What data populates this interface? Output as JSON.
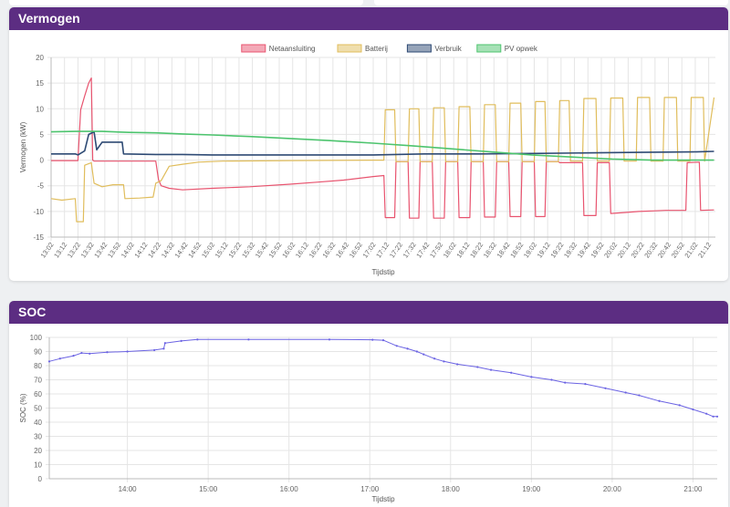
{
  "cards": {
    "vermogen": {
      "title": "Vermogen"
    },
    "soc": {
      "title": "SOC"
    }
  },
  "colors": {
    "header": "#5c2d82",
    "net": "#e8546f",
    "batt": "#e0bd5c",
    "verbruik": "#2e4a74",
    "pv": "#4dc46e",
    "soc": "#6b63e3"
  },
  "chart_data": [
    {
      "type": "line",
      "ylabel": "Vermogen (kW)",
      "xlabel": "Tijdstip",
      "ylim": [
        -15,
        20
      ],
      "yticks": [
        -15,
        -10,
        -5,
        0,
        5,
        10,
        15,
        20
      ],
      "xticks": [
        "13:02",
        "13:12",
        "13:22",
        "13:32",
        "13:42",
        "13:52",
        "14:02",
        "14:12",
        "14:22",
        "14:32",
        "14:42",
        "14:52",
        "15:02",
        "15:12",
        "15:22",
        "15:32",
        "15:42",
        "15:52",
        "16:02",
        "16:12",
        "16:22",
        "16:32",
        "16:42",
        "16:52",
        "17:02",
        "17:12",
        "17:22",
        "17:32",
        "17:42",
        "17:52",
        "18:02",
        "18:12",
        "18:22",
        "18:32",
        "18:42",
        "18:52",
        "19:02",
        "19:12",
        "19:22",
        "19:32",
        "19:42",
        "19:52",
        "20:02",
        "20:12",
        "20:22",
        "20:32",
        "20:42",
        "20:52",
        "21:02",
        "21:12"
      ],
      "xrange": [
        "13:02",
        "21:17"
      ],
      "legend": "top",
      "grid": true,
      "series": [
        {
          "name": "Netaansluiting",
          "color": "#e8546f",
          "points": [
            [
              "13:02",
              -0.1
            ],
            [
              "13:10",
              -0.1
            ],
            [
              "13:22",
              -0.1
            ],
            [
              "13:24",
              9.8
            ],
            [
              "13:27",
              12.5
            ],
            [
              "13:30",
              15.0
            ],
            [
              "13:32",
              16.0
            ],
            [
              "13:33",
              0.0
            ],
            [
              "13:34",
              -0.2
            ],
            [
              "13:50",
              -0.2
            ],
            [
              "14:08",
              -0.2
            ],
            [
              "14:20",
              -0.2
            ],
            [
              "14:22",
              -3.8
            ],
            [
              "14:24",
              -5.0
            ],
            [
              "14:30",
              -5.5
            ],
            [
              "14:40",
              -5.8
            ],
            [
              "15:02",
              -5.5
            ],
            [
              "15:30",
              -5.2
            ],
            [
              "16:00",
              -4.7
            ],
            [
              "16:20",
              -4.3
            ],
            [
              "16:40",
              -3.9
            ],
            [
              "17:02",
              -3.2
            ],
            [
              "17:10",
              -3.0
            ],
            [
              "17:11",
              -11.2
            ],
            [
              "17:18",
              -11.2
            ],
            [
              "17:19",
              -0.3
            ],
            [
              "17:28",
              -0.3
            ],
            [
              "17:29",
              -11.3
            ],
            [
              "17:36",
              -11.3
            ],
            [
              "17:37",
              -0.3
            ],
            [
              "17:46",
              -0.3
            ],
            [
              "17:47",
              -11.3
            ],
            [
              "17:55",
              -11.3
            ],
            [
              "17:56",
              -0.3
            ],
            [
              "18:05",
              -0.3
            ],
            [
              "18:06",
              -11.2
            ],
            [
              "18:14",
              -11.2
            ],
            [
              "18:15",
              -0.3
            ],
            [
              "18:24",
              -0.3
            ],
            [
              "18:25",
              -11.1
            ],
            [
              "18:33",
              -11.1
            ],
            [
              "18:34",
              -0.3
            ],
            [
              "18:43",
              -0.3
            ],
            [
              "18:44",
              -11.0
            ],
            [
              "18:52",
              -11.0
            ],
            [
              "18:53",
              -0.3
            ],
            [
              "19:02",
              -0.3
            ],
            [
              "19:03",
              -11.0
            ],
            [
              "19:10",
              -11.0
            ],
            [
              "19:11",
              -0.3
            ],
            [
              "19:20",
              -0.3
            ],
            [
              "19:21",
              -0.5
            ],
            [
              "19:38",
              -0.5
            ],
            [
              "19:39",
              -10.8
            ],
            [
              "19:48",
              -10.8
            ],
            [
              "19:49",
              -0.5
            ],
            [
              "19:58",
              -0.5
            ],
            [
              "19:59",
              -10.4
            ],
            [
              "20:10",
              -10.2
            ],
            [
              "20:20",
              -10.0
            ],
            [
              "20:30",
              -9.9
            ],
            [
              "20:40",
              -9.8
            ],
            [
              "20:55",
              -9.8
            ],
            [
              "20:56",
              -0.5
            ],
            [
              "21:05",
              -0.4
            ],
            [
              "21:06",
              -9.8
            ],
            [
              "21:16",
              -9.7
            ]
          ]
        },
        {
          "name": "Batterij",
          "color": "#e0bd5c",
          "points": [
            [
              "13:02",
              -7.5
            ],
            [
              "13:10",
              -7.8
            ],
            [
              "13:20",
              -7.5
            ],
            [
              "13:21",
              -12.0
            ],
            [
              "13:26",
              -12.0
            ],
            [
              "13:27",
              -1.0
            ],
            [
              "13:32",
              -0.5
            ],
            [
              "13:34",
              -4.5
            ],
            [
              "13:40",
              -5.2
            ],
            [
              "13:48",
              -4.8
            ],
            [
              "13:56",
              -4.8
            ],
            [
              "13:57",
              -7.5
            ],
            [
              "14:08",
              -7.4
            ],
            [
              "14:18",
              -7.2
            ],
            [
              "14:20",
              -4.5
            ],
            [
              "14:24",
              -4.0
            ],
            [
              "14:30",
              -1.2
            ],
            [
              "14:40",
              -0.8
            ],
            [
              "14:52",
              -0.4
            ],
            [
              "15:10",
              -0.2
            ],
            [
              "16:00",
              -0.1
            ],
            [
              "17:02",
              0.0
            ],
            [
              "17:10",
              0.0
            ],
            [
              "17:11",
              9.8
            ],
            [
              "17:18",
              9.8
            ],
            [
              "17:19",
              -0.3
            ],
            [
              "17:28",
              -0.3
            ],
            [
              "17:29",
              10.0
            ],
            [
              "17:36",
              10.0
            ],
            [
              "17:37",
              -0.3
            ],
            [
              "17:46",
              -0.3
            ],
            [
              "17:47",
              10.2
            ],
            [
              "17:55",
              10.2
            ],
            [
              "17:56",
              -0.3
            ],
            [
              "18:05",
              -0.3
            ],
            [
              "18:06",
              10.4
            ],
            [
              "18:14",
              10.4
            ],
            [
              "18:15",
              -0.3
            ],
            [
              "18:24",
              -0.3
            ],
            [
              "18:25",
              10.8
            ],
            [
              "18:33",
              10.8
            ],
            [
              "18:34",
              -0.3
            ],
            [
              "18:43",
              -0.3
            ],
            [
              "18:44",
              11.1
            ],
            [
              "18:52",
              11.1
            ],
            [
              "18:53",
              -0.3
            ],
            [
              "19:02",
              -0.3
            ],
            [
              "19:03",
              11.4
            ],
            [
              "19:10",
              11.4
            ],
            [
              "19:11",
              -0.3
            ],
            [
              "19:20",
              -0.3
            ],
            [
              "19:21",
              11.6
            ],
            [
              "19:28",
              11.6
            ],
            [
              "19:29",
              -0.2
            ],
            [
              "19:38",
              -0.2
            ],
            [
              "19:39",
              12.0
            ],
            [
              "19:48",
              12.0
            ],
            [
              "19:49",
              -0.2
            ],
            [
              "19:58",
              -0.2
            ],
            [
              "19:59",
              12.1
            ],
            [
              "20:08",
              12.1
            ],
            [
              "20:09",
              -0.2
            ],
            [
              "20:18",
              -0.2
            ],
            [
              "20:19",
              12.2
            ],
            [
              "20:28",
              12.2
            ],
            [
              "20:29",
              -0.2
            ],
            [
              "20:38",
              -0.2
            ],
            [
              "20:39",
              12.2
            ],
            [
              "20:48",
              12.2
            ],
            [
              "20:49",
              -0.2
            ],
            [
              "20:58",
              -0.2
            ],
            [
              "20:59",
              12.2
            ],
            [
              "21:08",
              12.2
            ],
            [
              "21:09",
              -0.2
            ],
            [
              "21:16",
              12.2
            ]
          ]
        },
        {
          "name": "Verbruik",
          "color": "#2e4a74",
          "points": [
            [
              "13:02",
              1.2
            ],
            [
              "13:20",
              1.2
            ],
            [
              "13:22",
              1.0
            ],
            [
              "13:27",
              1.8
            ],
            [
              "13:30",
              5.0
            ],
            [
              "13:34",
              5.5
            ],
            [
              "13:36",
              2.0
            ],
            [
              "13:40",
              3.5
            ],
            [
              "13:55",
              3.5
            ],
            [
              "13:56",
              1.2
            ],
            [
              "14:20",
              1.1
            ],
            [
              "14:40",
              1.1
            ],
            [
              "15:02",
              1.0
            ],
            [
              "15:40",
              1.0
            ],
            [
              "16:20",
              1.0
            ],
            [
              "17:02",
              1.0
            ],
            [
              "17:40",
              1.2
            ],
            [
              "18:20",
              1.2
            ],
            [
              "19:00",
              1.3
            ],
            [
              "19:40",
              1.4
            ],
            [
              "20:20",
              1.5
            ],
            [
              "21:00",
              1.6
            ],
            [
              "21:16",
              1.7
            ]
          ]
        },
        {
          "name": "PV opwek",
          "color": "#4dc46e",
          "points": [
            [
              "13:02",
              5.5
            ],
            [
              "13:20",
              5.6
            ],
            [
              "13:40",
              5.6
            ],
            [
              "14:00",
              5.4
            ],
            [
              "14:20",
              5.3
            ],
            [
              "14:40",
              5.1
            ],
            [
              "15:02",
              4.9
            ],
            [
              "15:30",
              4.6
            ],
            [
              "16:00",
              4.2
            ],
            [
              "16:30",
              3.8
            ],
            [
              "17:02",
              3.3
            ],
            [
              "17:30",
              2.8
            ],
            [
              "18:00",
              2.2
            ],
            [
              "18:30",
              1.6
            ],
            [
              "19:00",
              1.0
            ],
            [
              "19:30",
              0.6
            ],
            [
              "20:00",
              0.2
            ],
            [
              "20:30",
              0.0
            ],
            [
              "21:16",
              0.0
            ]
          ]
        }
      ]
    },
    {
      "type": "line",
      "ylabel": "SOC (%)",
      "xlabel": "Tijdstip",
      "ylim": [
        0,
        100
      ],
      "yticks": [
        0,
        10,
        20,
        30,
        40,
        50,
        60,
        70,
        80,
        90,
        100
      ],
      "xticks": [
        "14:00",
        "15:00",
        "16:00",
        "17:00",
        "18:00",
        "19:00",
        "20:00",
        "21:00"
      ],
      "xrange": [
        "13:02",
        "21:18"
      ],
      "grid": true,
      "series": [
        {
          "name": "SOC",
          "color": "#6b63e3",
          "points": [
            [
              "13:02",
              83
            ],
            [
              "13:10",
              85
            ],
            [
              "13:20",
              87
            ],
            [
              "13:26",
              89
            ],
            [
              "13:32",
              88.5
            ],
            [
              "13:45",
              89.5
            ],
            [
              "14:00",
              90
            ],
            [
              "14:20",
              91
            ],
            [
              "14:27",
              92
            ],
            [
              "14:28",
              96
            ],
            [
              "14:40",
              97.5
            ],
            [
              "14:52",
              98.5
            ],
            [
              "15:30",
              98.5
            ],
            [
              "16:30",
              98.5
            ],
            [
              "17:02",
              98.3
            ],
            [
              "17:10",
              98
            ],
            [
              "17:20",
              94
            ],
            [
              "17:28",
              92
            ],
            [
              "17:35",
              90
            ],
            [
              "17:40",
              88
            ],
            [
              "17:48",
              85
            ],
            [
              "17:55",
              83
            ],
            [
              "18:05",
              81
            ],
            [
              "18:20",
              79
            ],
            [
              "18:30",
              77
            ],
            [
              "18:45",
              75
            ],
            [
              "19:00",
              72
            ],
            [
              "19:15",
              70
            ],
            [
              "19:25",
              68
            ],
            [
              "19:40",
              67
            ],
            [
              "19:55",
              64
            ],
            [
              "20:10",
              61
            ],
            [
              "20:20",
              59
            ],
            [
              "20:35",
              55
            ],
            [
              "20:50",
              52
            ],
            [
              "21:00",
              49
            ],
            [
              "21:10",
              46
            ],
            [
              "21:15",
              44
            ],
            [
              "21:18",
              44
            ]
          ]
        }
      ]
    }
  ]
}
